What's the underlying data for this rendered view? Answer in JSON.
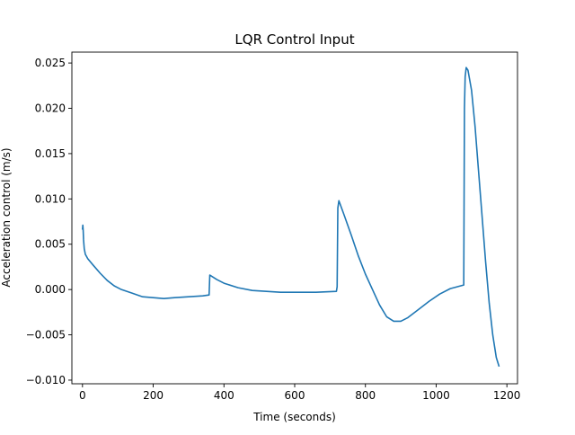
{
  "chart_data": {
    "type": "line",
    "title": "LQR Control Input",
    "xlabel": "Time (seconds)",
    "ylabel": "Acceleration control (m/s)",
    "xlim": [
      -30,
      1230
    ],
    "ylim": [
      -0.0104,
      0.0262
    ],
    "xticks": [
      0,
      200,
      400,
      600,
      800,
      1000,
      1200
    ],
    "xtick_labels": [
      "0",
      "200",
      "400",
      "600",
      "800",
      "1000",
      "1200"
    ],
    "yticks": [
      -0.01,
      -0.005,
      0.0,
      0.005,
      0.01,
      0.015,
      0.02,
      0.025
    ],
    "ytick_labels": [
      "−0.010",
      "−0.005",
      "0.000",
      "0.005",
      "0.010",
      "0.015",
      "0.020",
      "0.025"
    ],
    "grid": false,
    "series": [
      {
        "color": "#1f77b4",
        "points": [
          [
            0,
            0.0066
          ],
          [
            1,
            0.0071
          ],
          [
            2,
            0.0065
          ],
          [
            3,
            0.0055
          ],
          [
            5,
            0.0045
          ],
          [
            8,
            0.0039
          ],
          [
            15,
            0.0034
          ],
          [
            30,
            0.0027
          ],
          [
            50,
            0.0018
          ],
          [
            70,
            0.001
          ],
          [
            90,
            0.0004
          ],
          [
            110,
            0.0
          ],
          [
            140,
            -0.0004
          ],
          [
            170,
            -0.0008
          ],
          [
            200,
            -0.0009
          ],
          [
            230,
            -0.001
          ],
          [
            260,
            -0.0009
          ],
          [
            300,
            -0.0008
          ],
          [
            340,
            -0.0007
          ],
          [
            358,
            -0.0006
          ],
          [
            360,
            0.0016
          ],
          [
            380,
            0.0011
          ],
          [
            400,
            0.0007
          ],
          [
            440,
            0.0002
          ],
          [
            480,
            -0.0001
          ],
          [
            520,
            -0.0002
          ],
          [
            560,
            -0.0003
          ],
          [
            600,
            -0.0003
          ],
          [
            660,
            -0.0003
          ],
          [
            718,
            -0.0002
          ],
          [
            720,
            0.0003
          ],
          [
            722,
            0.009
          ],
          [
            725,
            0.0098
          ],
          [
            740,
            0.0082
          ],
          [
            760,
            0.006
          ],
          [
            780,
            0.0037
          ],
          [
            800,
            0.0017
          ],
          [
            820,
            0.0
          ],
          [
            840,
            -0.0017
          ],
          [
            860,
            -0.003
          ],
          [
            880,
            -0.0035
          ],
          [
            900,
            -0.0035
          ],
          [
            920,
            -0.0031
          ],
          [
            950,
            -0.0022
          ],
          [
            980,
            -0.0013
          ],
          [
            1010,
            -0.0005
          ],
          [
            1040,
            0.0001
          ],
          [
            1078,
            0.0005
          ],
          [
            1080,
            0.02
          ],
          [
            1082,
            0.0235
          ],
          [
            1085,
            0.0245
          ],
          [
            1090,
            0.0242
          ],
          [
            1100,
            0.022
          ],
          [
            1110,
            0.018
          ],
          [
            1120,
            0.013
          ],
          [
            1130,
            0.008
          ],
          [
            1140,
            0.003
          ],
          [
            1150,
            -0.0015
          ],
          [
            1160,
            -0.005
          ],
          [
            1170,
            -0.0075
          ],
          [
            1178,
            -0.0085
          ]
        ]
      }
    ]
  }
}
